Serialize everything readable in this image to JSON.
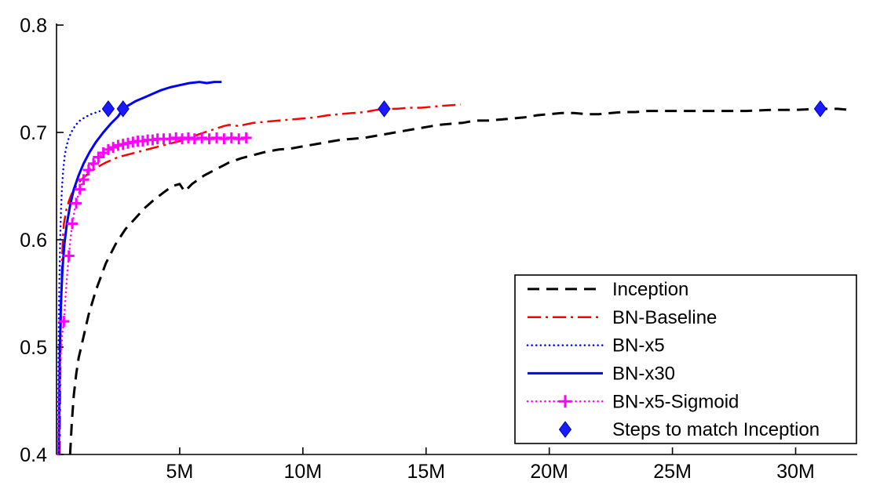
{
  "chart_data": {
    "type": "line",
    "title": "",
    "xlabel": "",
    "ylabel": "",
    "xlim": [
      0,
      32.5
    ],
    "ylim": [
      0.4,
      0.8
    ],
    "grid": false,
    "xticks": [
      5,
      10,
      15,
      20,
      25,
      30
    ],
    "xtick_labels": [
      "5M",
      "10M",
      "15M",
      "20M",
      "25M",
      "30M"
    ],
    "yticks": [
      0.4,
      0.5,
      0.6,
      0.7,
      0.8
    ],
    "ytick_labels": [
      "0.4",
      "0.5",
      "0.6",
      "0.7",
      "0.8"
    ],
    "series": [
      {
        "name": "Inception",
        "color": "#000000",
        "style": "dashed",
        "width": 3,
        "points": [
          [
            0.55,
            0.4
          ],
          [
            0.62,
            0.43
          ],
          [
            0.7,
            0.455
          ],
          [
            0.8,
            0.475
          ],
          [
            0.9,
            0.49
          ],
          [
            1.0,
            0.5
          ],
          [
            1.3,
            0.53
          ],
          [
            1.6,
            0.553
          ],
          [
            2.0,
            0.578
          ],
          [
            2.4,
            0.596
          ],
          [
            2.8,
            0.61
          ],
          [
            3.2,
            0.62
          ],
          [
            3.6,
            0.63
          ],
          [
            4.0,
            0.638
          ],
          [
            4.4,
            0.645
          ],
          [
            4.7,
            0.65
          ],
          [
            5.0,
            0.652
          ],
          [
            5.2,
            0.645
          ],
          [
            5.5,
            0.652
          ],
          [
            6.0,
            0.66
          ],
          [
            6.5,
            0.666
          ],
          [
            7.0,
            0.672
          ],
          [
            7.5,
            0.676
          ],
          [
            8.0,
            0.679
          ],
          [
            8.5,
            0.682
          ],
          [
            9.0,
            0.684
          ],
          [
            9.5,
            0.685
          ],
          [
            10.0,
            0.687
          ],
          [
            10.5,
            0.689
          ],
          [
            11.0,
            0.691
          ],
          [
            11.5,
            0.693
          ],
          [
            12.0,
            0.694
          ],
          [
            12.5,
            0.695
          ],
          [
            13.0,
            0.697
          ],
          [
            13.5,
            0.699
          ],
          [
            14.0,
            0.701
          ],
          [
            14.5,
            0.703
          ],
          [
            15.0,
            0.705
          ],
          [
            15.5,
            0.707
          ],
          [
            16.0,
            0.708
          ],
          [
            16.5,
            0.709
          ],
          [
            17.0,
            0.711
          ],
          [
            17.5,
            0.711
          ],
          [
            18.0,
            0.712
          ],
          [
            18.5,
            0.713
          ],
          [
            19.0,
            0.714
          ],
          [
            19.5,
            0.716
          ],
          [
            20.0,
            0.717
          ],
          [
            20.5,
            0.718
          ],
          [
            21.0,
            0.718
          ],
          [
            21.5,
            0.717
          ],
          [
            22.0,
            0.717
          ],
          [
            22.5,
            0.718
          ],
          [
            23.0,
            0.719
          ],
          [
            23.5,
            0.719
          ],
          [
            24.0,
            0.72
          ],
          [
            25.0,
            0.72
          ],
          [
            26.0,
            0.72
          ],
          [
            27.0,
            0.72
          ],
          [
            28.0,
            0.72
          ],
          [
            29.0,
            0.721
          ],
          [
            30.0,
            0.721
          ],
          [
            31.0,
            0.722
          ],
          [
            31.7,
            0.722
          ],
          [
            32.2,
            0.721
          ]
        ]
      },
      {
        "name": "BN-Baseline",
        "color": "#ff0000",
        "style": "dashdot",
        "width": 2.5,
        "points": [
          [
            0.13,
            0.4
          ],
          [
            0.15,
            0.46
          ],
          [
            0.17,
            0.51
          ],
          [
            0.2,
            0.555
          ],
          [
            0.23,
            0.585
          ],
          [
            0.26,
            0.602
          ],
          [
            0.3,
            0.615
          ],
          [
            0.4,
            0.628
          ],
          [
            0.5,
            0.636
          ],
          [
            0.6,
            0.642
          ],
          [
            0.8,
            0.65
          ],
          [
            1.0,
            0.656
          ],
          [
            1.3,
            0.662
          ],
          [
            1.6,
            0.667
          ],
          [
            2.0,
            0.672
          ],
          [
            2.5,
            0.677
          ],
          [
            3.0,
            0.68
          ],
          [
            3.5,
            0.683
          ],
          [
            4.0,
            0.686
          ],
          [
            4.5,
            0.689
          ],
          [
            5.0,
            0.692
          ],
          [
            5.5,
            0.696
          ],
          [
            6.0,
            0.7
          ],
          [
            6.4,
            0.703
          ],
          [
            6.8,
            0.706
          ],
          [
            7.0,
            0.707
          ],
          [
            7.4,
            0.706
          ],
          [
            7.8,
            0.708
          ],
          [
            8.0,
            0.709
          ],
          [
            9.0,
            0.711
          ],
          [
            10.0,
            0.713
          ],
          [
            10.5,
            0.714
          ],
          [
            11.0,
            0.716
          ],
          [
            11.5,
            0.717
          ],
          [
            12.0,
            0.718
          ],
          [
            12.5,
            0.719
          ],
          [
            13.0,
            0.721
          ],
          [
            13.3,
            0.722
          ],
          [
            13.8,
            0.722
          ],
          [
            14.3,
            0.723
          ],
          [
            14.8,
            0.723
          ],
          [
            15.3,
            0.724
          ],
          [
            15.8,
            0.725
          ],
          [
            16.4,
            0.726
          ]
        ]
      },
      {
        "name": "BN-x5",
        "color": "#0000ff",
        "style": "dotted",
        "width": 2.5,
        "points": [
          [
            0.06,
            0.4
          ],
          [
            0.07,
            0.45
          ],
          [
            0.08,
            0.49
          ],
          [
            0.1,
            0.535
          ],
          [
            0.12,
            0.568
          ],
          [
            0.15,
            0.6
          ],
          [
            0.18,
            0.625
          ],
          [
            0.22,
            0.648
          ],
          [
            0.27,
            0.665
          ],
          [
            0.33,
            0.678
          ],
          [
            0.4,
            0.687
          ],
          [
            0.5,
            0.695
          ],
          [
            0.62,
            0.701
          ],
          [
            0.78,
            0.707
          ],
          [
            0.95,
            0.711
          ],
          [
            1.15,
            0.714
          ],
          [
            1.4,
            0.717
          ],
          [
            1.65,
            0.719
          ],
          [
            1.9,
            0.721
          ],
          [
            2.1,
            0.722
          ],
          [
            2.3,
            0.722
          ]
        ]
      },
      {
        "name": "BN-x30",
        "color": "#0000ff",
        "style": "solid",
        "width": 3,
        "points": [
          [
            0.09,
            0.4
          ],
          [
            0.11,
            0.45
          ],
          [
            0.14,
            0.5
          ],
          [
            0.18,
            0.54
          ],
          [
            0.24,
            0.572
          ],
          [
            0.32,
            0.596
          ],
          [
            0.42,
            0.615
          ],
          [
            0.55,
            0.632
          ],
          [
            0.7,
            0.647
          ],
          [
            0.9,
            0.66
          ],
          [
            1.1,
            0.671
          ],
          [
            1.35,
            0.682
          ],
          [
            1.6,
            0.691
          ],
          [
            1.9,
            0.7
          ],
          [
            2.2,
            0.708
          ],
          [
            2.5,
            0.715
          ],
          [
            2.7,
            0.722
          ],
          [
            2.9,
            0.725
          ],
          [
            3.2,
            0.729
          ],
          [
            3.5,
            0.732
          ],
          [
            3.8,
            0.735
          ],
          [
            4.2,
            0.739
          ],
          [
            4.6,
            0.742
          ],
          [
            5.0,
            0.744
          ],
          [
            5.4,
            0.746
          ],
          [
            5.8,
            0.747
          ],
          [
            6.1,
            0.746
          ],
          [
            6.4,
            0.747
          ],
          [
            6.7,
            0.747
          ]
        ]
      },
      {
        "name": "BN-x5-Sigmoid",
        "color": "#ff00ff",
        "style": "dotted",
        "width": 2.5,
        "marker": "plus",
        "points": [
          [
            0.05,
            0.4
          ],
          [
            0.09,
            0.438
          ],
          [
            0.13,
            0.468
          ],
          [
            0.18,
            0.495
          ],
          [
            0.24,
            0.513
          ],
          [
            0.3,
            0.524
          ],
          [
            0.37,
            0.548
          ],
          [
            0.44,
            0.57
          ],
          [
            0.5,
            0.585
          ],
          [
            0.57,
            0.602
          ],
          [
            0.64,
            0.615
          ],
          [
            0.73,
            0.627
          ],
          [
            0.83,
            0.637
          ],
          [
            0.95,
            0.647
          ],
          [
            1.1,
            0.656
          ],
          [
            1.25,
            0.663
          ],
          [
            1.45,
            0.67
          ],
          [
            1.65,
            0.676
          ],
          [
            1.85,
            0.68
          ],
          [
            2.05,
            0.683
          ],
          [
            2.25,
            0.686
          ],
          [
            2.45,
            0.688
          ],
          [
            2.65,
            0.689
          ],
          [
            2.85,
            0.69
          ],
          [
            3.05,
            0.691
          ],
          [
            3.25,
            0.692
          ],
          [
            3.45,
            0.692
          ],
          [
            3.65,
            0.693
          ],
          [
            3.85,
            0.693
          ],
          [
            4.05,
            0.694
          ],
          [
            4.3,
            0.694
          ],
          [
            4.55,
            0.694
          ],
          [
            4.8,
            0.695
          ],
          [
            5.05,
            0.694
          ],
          [
            5.3,
            0.695
          ],
          [
            5.55,
            0.694
          ],
          [
            5.8,
            0.695
          ],
          [
            6.05,
            0.694
          ],
          [
            6.3,
            0.695
          ],
          [
            6.55,
            0.694
          ],
          [
            6.8,
            0.695
          ],
          [
            7.05,
            0.694
          ],
          [
            7.3,
            0.695
          ],
          [
            7.55,
            0.694
          ],
          [
            7.85,
            0.695
          ]
        ],
        "marker_points": [
          [
            0.3,
            0.524
          ],
          [
            0.5,
            0.585
          ],
          [
            0.64,
            0.615
          ],
          [
            0.8,
            0.634
          ],
          [
            0.95,
            0.647
          ],
          [
            1.1,
            0.656
          ],
          [
            1.3,
            0.665
          ],
          [
            1.5,
            0.671
          ],
          [
            1.7,
            0.677
          ],
          [
            1.9,
            0.681
          ],
          [
            2.1,
            0.684
          ],
          [
            2.3,
            0.686
          ],
          [
            2.5,
            0.688
          ],
          [
            2.7,
            0.689
          ],
          [
            2.9,
            0.69
          ],
          [
            3.1,
            0.691
          ],
          [
            3.3,
            0.692
          ],
          [
            3.5,
            0.692
          ],
          [
            3.7,
            0.693
          ],
          [
            3.9,
            0.693
          ],
          [
            4.1,
            0.694
          ],
          [
            4.35,
            0.694
          ],
          [
            4.6,
            0.694
          ],
          [
            4.85,
            0.695
          ],
          [
            5.1,
            0.694
          ],
          [
            5.35,
            0.695
          ],
          [
            5.6,
            0.694
          ],
          [
            5.9,
            0.695
          ],
          [
            6.2,
            0.694
          ],
          [
            6.5,
            0.695
          ],
          [
            6.8,
            0.694
          ],
          [
            7.1,
            0.695
          ],
          [
            7.4,
            0.694
          ],
          [
            7.7,
            0.695
          ]
        ]
      }
    ],
    "scatter": {
      "name": "Steps to match Inception",
      "marker": "diamond",
      "color": "#1a1aff",
      "points": [
        [
          2.1,
          0.722
        ],
        [
          2.7,
          0.722
        ],
        [
          13.3,
          0.722
        ],
        [
          31.0,
          0.722
        ]
      ]
    },
    "legend": {
      "position": "lower right",
      "entries": [
        "Inception",
        "BN-Baseline",
        "BN-x5",
        "BN-x30",
        "BN-x5-Sigmoid",
        "Steps to match Inception"
      ]
    }
  }
}
